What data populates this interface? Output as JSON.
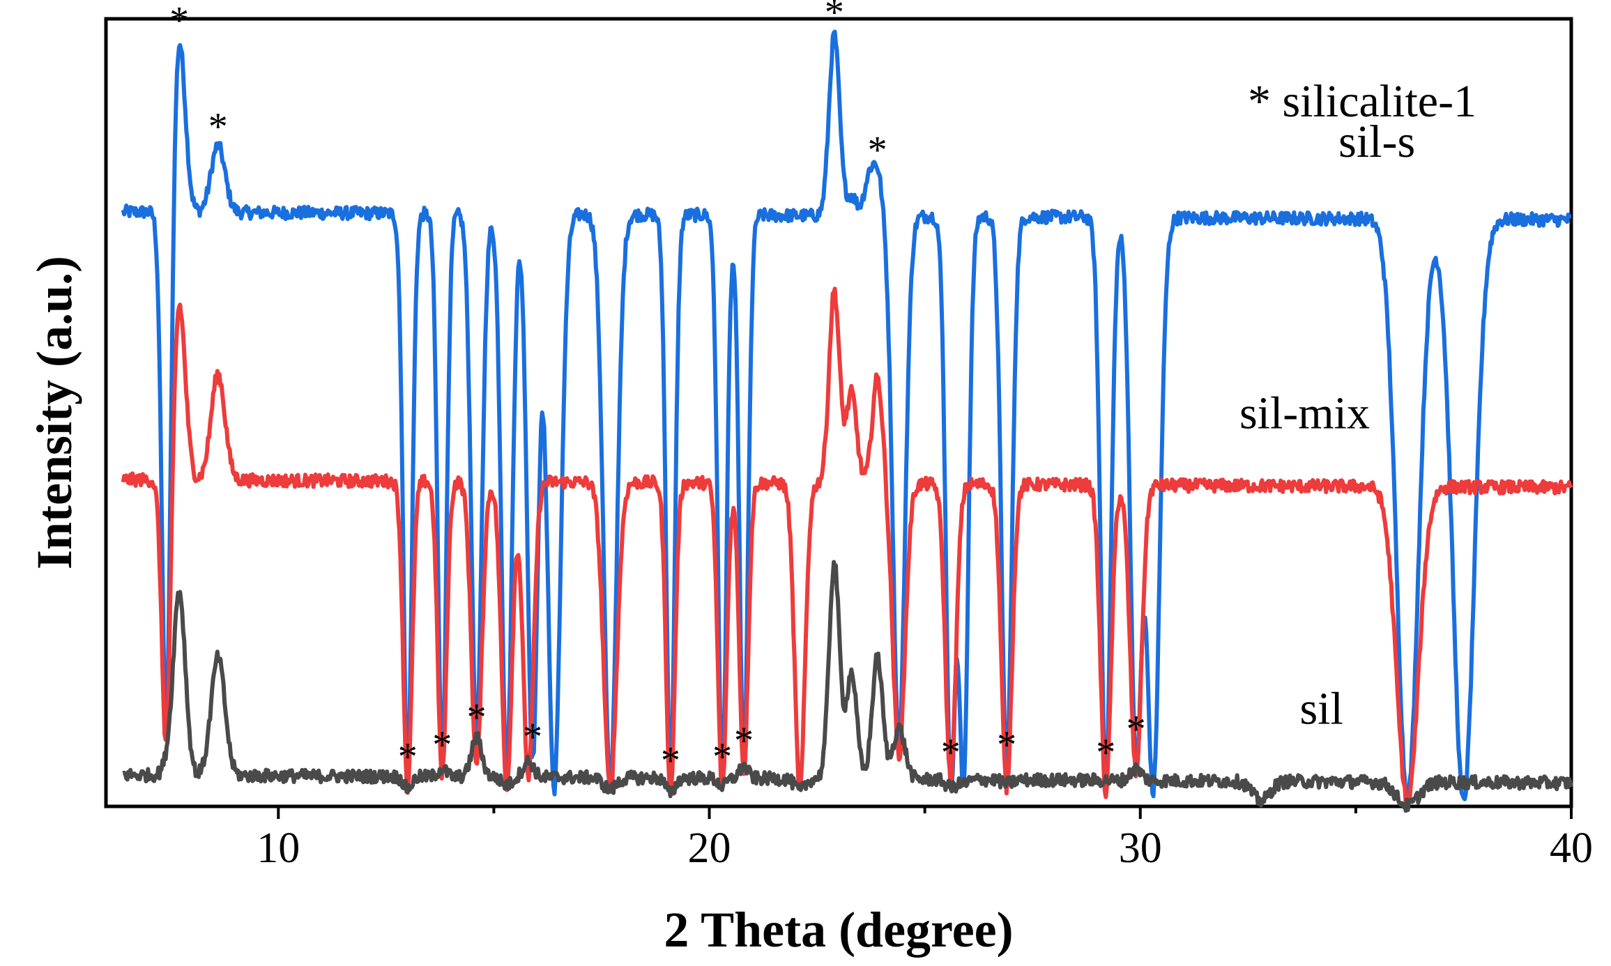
{
  "chart_data": {
    "type": "line",
    "xlabel": "2 Theta (degree)",
    "ylabel": "Intensity (a.u.)",
    "xlim": [
      6,
      40
    ],
    "ylim": [
      0,
      100
    ],
    "xticks": [
      10,
      20,
      30,
      40
    ],
    "grid": false,
    "legend_text": "* silicalite-1",
    "marker_symbol": "*",
    "series": [
      {
        "name": "sil-s",
        "color": "#1a6fdf",
        "baseline": 75.5,
        "label_x": 34.6,
        "label_y": 82.5,
        "peaks": [
          [
            7.7,
            97.5,
            0.14
          ],
          [
            8.6,
            84.0,
            0.16
          ],
          [
            7.4,
            8.0,
            0.1
          ],
          [
            13.0,
            4.0,
            0.1
          ],
          [
            13.8,
            5.5,
            0.1
          ],
          [
            14.6,
            9.0,
            0.12
          ],
          [
            15.3,
            4.5,
            0.12
          ],
          [
            15.9,
            6.5,
            0.12
          ],
          [
            16.4,
            2.5,
            0.15
          ],
          [
            17.7,
            3.0,
            0.15
          ],
          [
            19.1,
            3.5,
            0.1
          ],
          [
            20.3,
            4.0,
            0.1
          ],
          [
            20.8,
            6.0,
            0.1
          ],
          [
            22.9,
            98.5,
            0.12
          ],
          [
            23.3,
            78.0,
            0.12
          ],
          [
            23.7,
            80.0,
            0.11
          ],
          [
            23.9,
            81.0,
            0.11
          ],
          [
            24.4,
            8.5,
            0.14
          ],
          [
            25.6,
            4.5,
            0.11
          ],
          [
            25.9,
            4.5,
            0.11
          ],
          [
            26.9,
            5.5,
            0.12
          ],
          [
            29.2,
            4.5,
            0.12
          ],
          [
            29.9,
            7.5,
            0.13
          ],
          [
            30.3,
            3.0,
            0.15
          ],
          [
            36.2,
            2.0,
            0.25
          ],
          [
            37.5,
            1.5,
            0.25
          ]
        ],
        "stars": [
          [
            7.7,
            97.5
          ],
          [
            8.6,
            84.0
          ],
          [
            13.0,
            4.0
          ],
          [
            13.8,
            5.5
          ],
          [
            14.6,
            9.0
          ],
          [
            15.9,
            6.5
          ],
          [
            19.1,
            3.5
          ],
          [
            20.3,
            4.0
          ],
          [
            20.8,
            6.0
          ],
          [
            22.9,
            98.5
          ],
          [
            23.9,
            81.0
          ],
          [
            25.6,
            4.5
          ],
          [
            26.9,
            5.5
          ],
          [
            29.2,
            4.5
          ],
          [
            29.9,
            7.5
          ]
        ]
      },
      {
        "name": "sil-mix",
        "color": "#ee3b3b",
        "baseline": 41.5,
        "label_x": 32.3,
        "label_y": 48.0,
        "peaks": [
          [
            7.7,
            64.0,
            0.14
          ],
          [
            8.6,
            55.0,
            0.16
          ],
          [
            7.4,
            6.0,
            0.1
          ],
          [
            13.0,
            2.5,
            0.1
          ],
          [
            13.8,
            4.0,
            0.1
          ],
          [
            14.6,
            5.5,
            0.12
          ],
          [
            15.3,
            3.0,
            0.12
          ],
          [
            15.8,
            4.0,
            0.12
          ],
          [
            17.7,
            2.5,
            0.15
          ],
          [
            19.1,
            2.0,
            0.1
          ],
          [
            20.3,
            2.5,
            0.1
          ],
          [
            20.8,
            5.0,
            0.1
          ],
          [
            22.1,
            2.5,
            0.12
          ],
          [
            22.9,
            66.0,
            0.12
          ],
          [
            23.3,
            53.0,
            0.12
          ],
          [
            23.9,
            55.0,
            0.12
          ],
          [
            24.4,
            7.0,
            0.14
          ],
          [
            25.6,
            4.0,
            0.12
          ],
          [
            26.9,
            3.0,
            0.12
          ],
          [
            29.2,
            2.5,
            0.12
          ],
          [
            29.9,
            5.0,
            0.13
          ],
          [
            36.2,
            1.5,
            0.25
          ]
        ],
        "stars": []
      },
      {
        "name": "sil",
        "color": "#4a4a4a",
        "baseline": 4.0,
        "label_x": 33.7,
        "label_y": 10.5,
        "peaks": [
          [
            7.7,
            27.5,
            0.14
          ],
          [
            8.6,
            19.0,
            0.16
          ],
          [
            7.4,
            5.0,
            0.1
          ],
          [
            13.0,
            2.5,
            0.1
          ],
          [
            13.8,
            5.0,
            0.1
          ],
          [
            14.6,
            9.0,
            0.12
          ],
          [
            15.3,
            3.0,
            0.12
          ],
          [
            15.8,
            6.0,
            0.12
          ],
          [
            17.7,
            2.5,
            0.15
          ],
          [
            19.1,
            2.0,
            0.1
          ],
          [
            20.3,
            3.0,
            0.1
          ],
          [
            20.8,
            5.5,
            0.1
          ],
          [
            22.1,
            2.5,
            0.12
          ],
          [
            22.9,
            31.5,
            0.12
          ],
          [
            23.3,
            17.5,
            0.12
          ],
          [
            23.9,
            19.5,
            0.12
          ],
          [
            24.4,
            10.5,
            0.14
          ],
          [
            25.6,
            3.0,
            0.12
          ],
          [
            25.9,
            3.5,
            0.12
          ],
          [
            26.9,
            3.5,
            0.12
          ],
          [
            29.2,
            4.0,
            0.12
          ],
          [
            29.9,
            5.5,
            0.13
          ],
          [
            32.8,
            1.5,
            0.2
          ],
          [
            36.2,
            1.0,
            0.25
          ]
        ],
        "stars": []
      }
    ]
  }
}
